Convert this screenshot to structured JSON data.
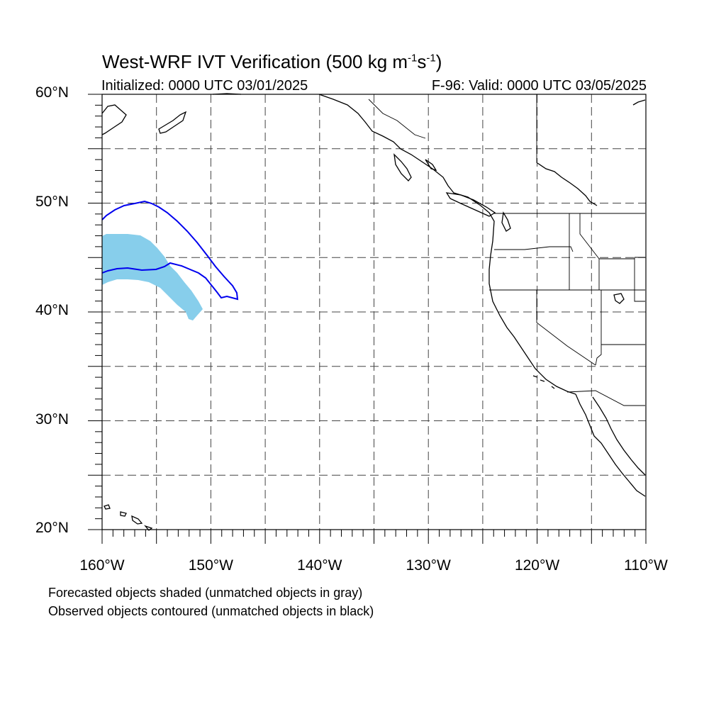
{
  "title_prefix": "West-WRF IVT Verification (500 kg m",
  "title_exp1": "-1",
  "title_mid": "s",
  "title_exp2": "-1",
  "title_suffix": ")",
  "initialized": "Initialized: 0000 UTC 03/01/2025",
  "valid": "F-96: Valid: 0000 UTC 03/05/2025",
  "lat_labels": [
    {
      "value": 60,
      "text": "60°N"
    },
    {
      "value": 50,
      "text": "50°N"
    },
    {
      "value": 40,
      "text": "40°N"
    },
    {
      "value": 30,
      "text": "30°N"
    },
    {
      "value": 20,
      "text": "20°N"
    }
  ],
  "lon_labels": [
    {
      "value": -160,
      "text": "160°W"
    },
    {
      "value": -150,
      "text": "150°W"
    },
    {
      "value": -140,
      "text": "140°W"
    },
    {
      "value": -130,
      "text": "130°W"
    },
    {
      "value": -120,
      "text": "120°W"
    },
    {
      "value": -110,
      "text": "110°W"
    }
  ],
  "map_extent": {
    "lon_min": -160,
    "lon_max": -110,
    "lat_min": 20,
    "lat_max": 60
  },
  "grid_spacing_deg": 5,
  "colors": {
    "forecast_shade": "#87ceeb",
    "observed_contour": "#0000ee",
    "coast": "#000000",
    "grid": "#444444"
  },
  "footnotes": {
    "line1": "Forecasted objects shaded (unmatched objects in gray)",
    "line2": "Observed objects contoured (unmatched objects in black)"
  }
}
